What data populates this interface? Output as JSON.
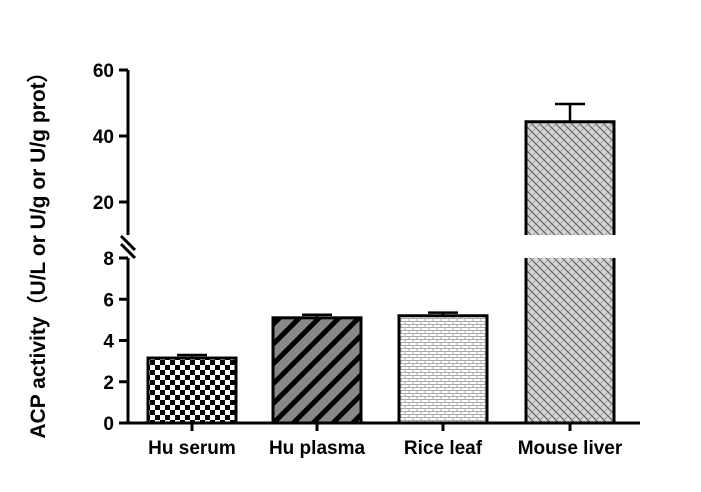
{
  "chart_data": {
    "type": "bar",
    "title": "",
    "xlabel": "",
    "ylabel": "ACP activity（U/L or U/g or U/g prot）",
    "categories": [
      "Hu serum",
      "Hu plasma",
      "Rice leaf",
      "Mouse liver"
    ],
    "values": [
      3.15,
      5.1,
      5.2,
      44.3
    ],
    "errors": [
      0.15,
      0.15,
      0.15,
      5.4
    ],
    "patterns": [
      "checkerboard",
      "diagonal-stripes",
      "brick-light",
      "crosshatch-grey"
    ],
    "axis_break": {
      "lower_range": [
        0,
        8
      ],
      "upper_range": [
        10,
        60
      ]
    },
    "y_ticks_lower": [
      0,
      2,
      4,
      6,
      8
    ],
    "y_ticks_upper": [
      20,
      40,
      60
    ],
    "grid": false,
    "colors": {
      "axis": "#000000",
      "stripe": "#888888",
      "brick": "#bbbbbb",
      "crosshatch": "#777777"
    }
  }
}
